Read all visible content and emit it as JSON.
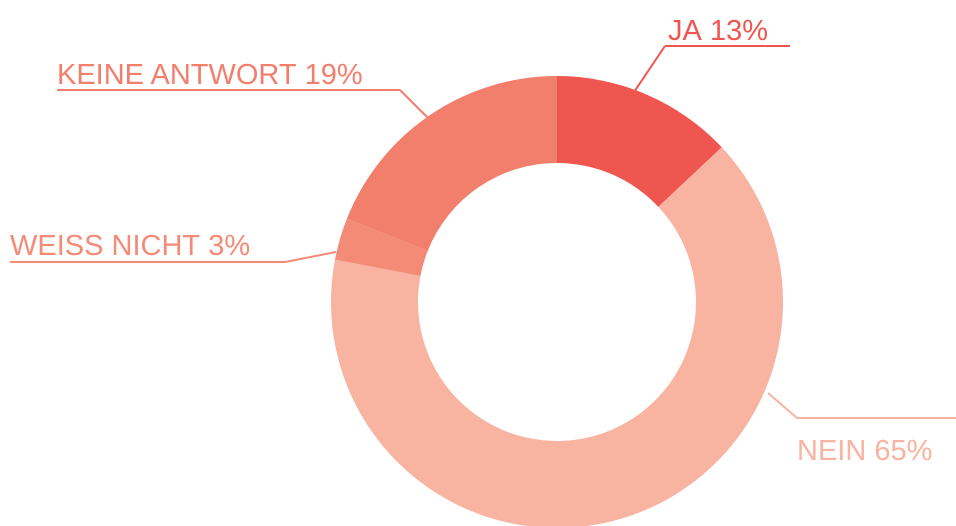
{
  "chart_data": {
    "type": "donut",
    "categories": [
      "JA",
      "NEIN",
      "WEISS NICHT",
      "KEINE ANTWORT"
    ],
    "values": [
      13,
      65,
      3,
      19
    ],
    "value_labels": [
      "13%",
      "65%",
      "3%",
      "19%"
    ],
    "colors": [
      "#ef564f",
      "#f8b3a1",
      "#f38b77",
      "#f27e6c"
    ]
  }
}
